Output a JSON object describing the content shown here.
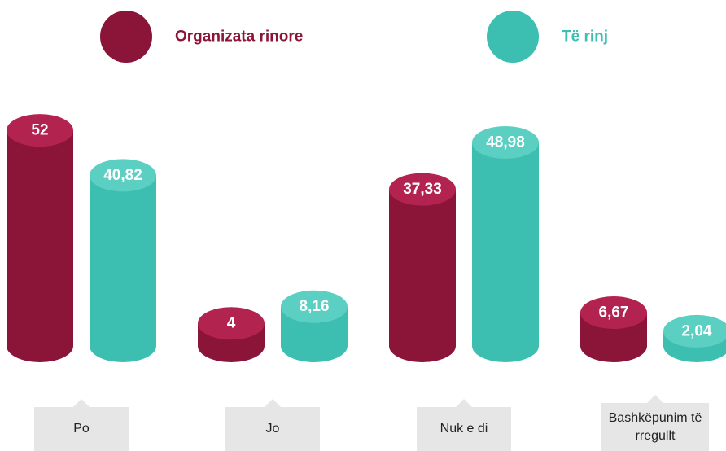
{
  "chart_data": {
    "type": "cylinder-bar",
    "categories": [
      "Po",
      "Jo",
      "Nuk e di",
      "Bashkëpunim të rregullt"
    ],
    "series": [
      {
        "name": "Organizata rinore",
        "color": "#8a1538",
        "top_color": "#b3234f",
        "values": [
          52,
          4,
          37.33,
          6.67
        ],
        "value_labels": [
          "52",
          "4",
          "37,33",
          "6,67"
        ]
      },
      {
        "name": "Të rinj",
        "color": "#3cbfb1",
        "top_color": "#5ccfc3",
        "values": [
          40.82,
          8.16,
          48.98,
          2.04
        ],
        "value_labels": [
          "40,82",
          "8,16",
          "48,98",
          "2,04"
        ]
      }
    ],
    "ylim": [
      0,
      60
    ]
  }
}
